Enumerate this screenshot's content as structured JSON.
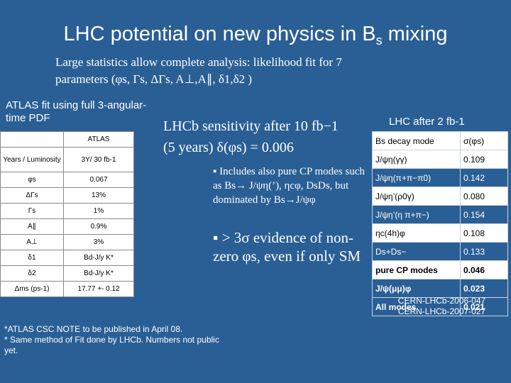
{
  "title": {
    "main": "LHC potential on new physics in B",
    "sub": "s",
    "tail": " mixing"
  },
  "intro": {
    "line1": "Large statistics allow complete analysis: likelihood fit for 7",
    "line2": "parameters (φs, Γs, ΔΓs, A⊥,A∥, δ1,δ2 )"
  },
  "atlas": {
    "heading": "ATLAS fit using full 3-angular-time PDF",
    "col_header": "ATLAS",
    "rows": [
      {
        "label": "Years / Luminosity",
        "value": "3Y/ 30 fb-1"
      },
      {
        "label": "φs",
        "value": "0.067"
      },
      {
        "label": "ΔΓs",
        "value": "13%"
      },
      {
        "label": "Γs",
        "value": "1%"
      },
      {
        "label": "A∥",
        "value": "0.9%"
      },
      {
        "label": "A⊥",
        "value": "3%"
      },
      {
        "label": "δ1",
        "value": "Bd-J/y K*"
      },
      {
        "label": "δ2",
        "value": "Bd-J/y K*"
      },
      {
        "label": "Δms (ps-1)",
        "value": "17.77 +- 0.12"
      }
    ],
    "footnote1": "*ATLAS CSC NOTE to be published in April 08.",
    "footnote2": "* Same method of Fit done by LHCb. Numbers not public yet."
  },
  "lhcb": {
    "sensitivity_line1": "LHCb sensitivity after 10 fb−1",
    "sensitivity_line2": "(5 years) δ(φs) = 0.006",
    "bullet1": "▪ Includes also pure CP modes such as Bs→ J/ψη(’), ηcφ, DsDs, but dominated by Bs→J/ψφ",
    "bullet2": "▪ > 3σ evidence of non-zero φs, even if only SM"
  },
  "lhc2": {
    "heading": "LHC after 2 fb-1",
    "col_mode": "Bs decay mode",
    "col_sigma": "σ(φs)",
    "rows": [
      {
        "mode": "J/ψη(γγ)",
        "value": "0.109"
      },
      {
        "mode": "J/ψη(π+π−π0)",
        "value": "0.142"
      },
      {
        "mode": "J/ψη’(ρ0γ)",
        "value": "0.080"
      },
      {
        "mode": "J/ψη’(η π+π−)",
        "value": "0.154"
      },
      {
        "mode": "ηc(4h)φ",
        "value": "0.108"
      },
      {
        "mode": "Ds+Ds−",
        "value": "0.133"
      },
      {
        "mode": "pure CP modes",
        "value": "0.046"
      },
      {
        "mode": "J/ψ(μμ)φ",
        "value": "0.023"
      },
      {
        "mode": "All modes",
        "value": "0.021"
      }
    ],
    "refs": [
      "CERN-LHCb-2006-047",
      "CERN-LHCb-2007-027"
    ]
  }
}
